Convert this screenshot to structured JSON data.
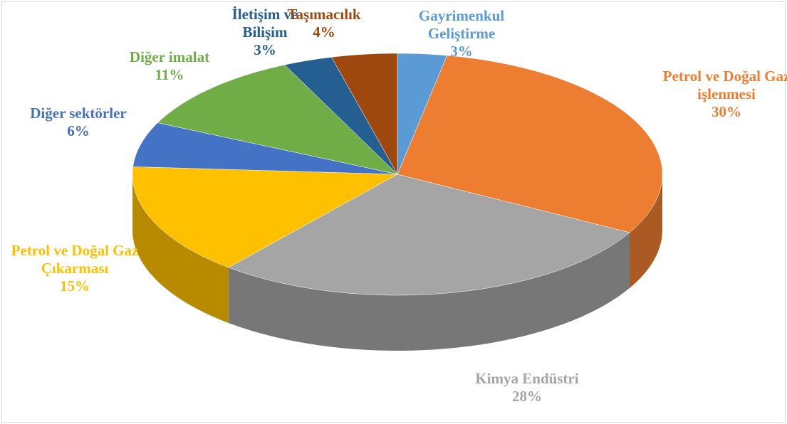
{
  "chart_data": {
    "type": "pie3d",
    "categories": [
      "Gayrimenkul Geliştirme",
      "Petrol ve Doğal Gaz işlenmesi",
      "Kimya Endüstri",
      "Petrol ve Doğal Gaz Çıkarması",
      "Diğer sektörler",
      "Diğer imalat",
      "İletişim ve Bilişim",
      "Taşımacılık"
    ],
    "values": [
      3,
      30,
      28,
      15,
      6,
      11,
      3,
      4
    ],
    "value_labels": [
      "3%",
      "30%",
      "28%",
      "15%",
      "6%",
      "11%",
      "3%",
      "4%"
    ],
    "colors": [
      "#5b9bd5",
      "#ed7d31",
      "#a5a5a5",
      "#ffc000",
      "#4472c4",
      "#70ad47",
      "#255e91",
      "#9e480e"
    ]
  }
}
